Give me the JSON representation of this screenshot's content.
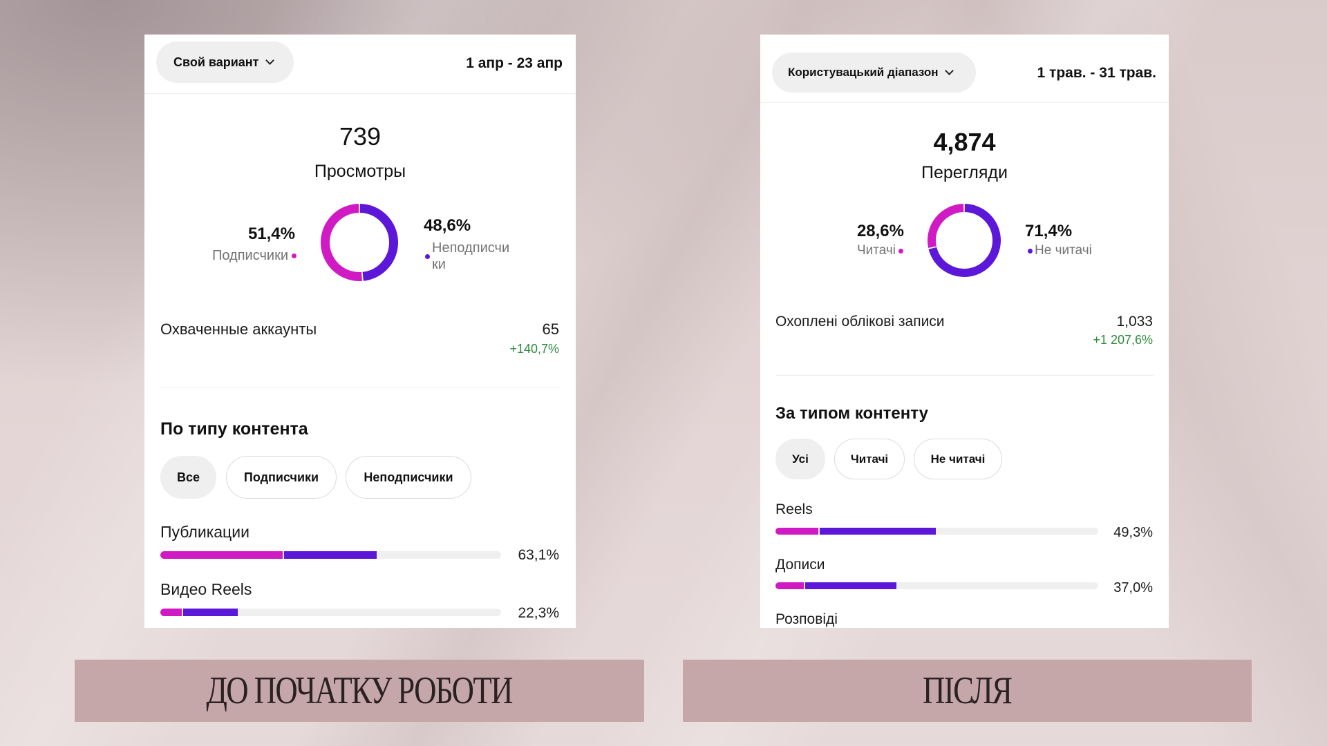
{
  "colors": {
    "card": "#ffffff",
    "followers": "#d01bc4",
    "non_followers": "#5c17d8",
    "track": "#efefef",
    "growth": "#2f8a3c",
    "chip_active": "#efefef",
    "caption_bar": "#c6a7a9",
    "caption_text": "#2a2121"
  },
  "panels": [
    {
      "range_selector": {
        "label": "Свой вариант",
        "icon": "chevron-down-icon"
      },
      "date_range": "1 апр - 23 апр",
      "views": {
        "value": "739",
        "label": "Просмотры"
      },
      "audience": {
        "followers": {
          "percent_text": "51,4%",
          "label": "Подписчики",
          "value": 51.4
        },
        "non_followers": {
          "percent_text": "48,6%",
          "label": "Неподписчики",
          "value": 48.6
        }
      },
      "accounts_reached": {
        "label": "Охваченные аккаунты",
        "value": "65",
        "change": "+140,7%"
      },
      "content_type": {
        "title": "По типу контента",
        "filters": [
          "Все",
          "Подписчики",
          "Неподписчики"
        ],
        "active_filter": 0,
        "rows": [
          {
            "label": "Публикации",
            "percent_text": "63,1%",
            "fill_percent": {
              "followers": 35.9,
              "non_followers": 27.1
            }
          },
          {
            "label": "Видео Reels",
            "percent_text": "22,3%",
            "fill_percent": {
              "followers": 6.3,
              "non_followers": 16.0
            }
          }
        ]
      },
      "caption": "ДО ПОЧАТКУ РОБОТИ"
    },
    {
      "range_selector": {
        "label": "Користувацький діапазон",
        "icon": "chevron-down-icon"
      },
      "date_range": "1 трав. - 31 трав.",
      "views": {
        "value": "4,874",
        "label": "Перегляди"
      },
      "audience": {
        "followers": {
          "percent_text": "28,6%",
          "label": "Читачі",
          "value": 28.6
        },
        "non_followers": {
          "percent_text": "71,4%",
          "label": "Не читачі",
          "value": 71.4
        }
      },
      "accounts_reached": {
        "label": "Охоплені облікові записи",
        "value": "1,033",
        "change": "+1 207,6%"
      },
      "content_type": {
        "title": "За типом контенту",
        "filters": [
          "Усі",
          "Читачі",
          "Не читачі"
        ],
        "active_filter": 0,
        "rows": [
          {
            "label": "Reels",
            "percent_text": "49,3%",
            "fill_percent": {
              "followers": 13.2,
              "non_followers": 36.1
            }
          },
          {
            "label": "Дописи",
            "percent_text": "37,0%",
            "fill_percent": {
              "followers": 8.8,
              "non_followers": 28.2
            }
          },
          {
            "label": "Розповіді"
          }
        ]
      },
      "caption": "ПІСЛЯ"
    }
  ]
}
